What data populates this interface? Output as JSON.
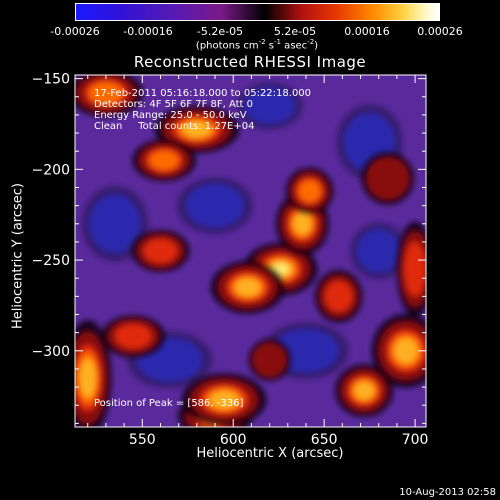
{
  "colorbar": {
    "ticks": [
      "-0.00026",
      "-0.00016",
      "-5.2e-05",
      "5.2e-05",
      "0.00016",
      "0.00026"
    ],
    "units_prefix": "(photons cm",
    "units_exp1": "-2",
    "units_mid": " s",
    "units_exp2": "-1",
    "units_suffix": " asec",
    "units_exp3": "-2",
    "units_close": ")",
    "min": -0.00026,
    "max": 0.00026
  },
  "chart_data": {
    "type": "heatmap",
    "title": "Reconstructed RHESSI Image",
    "xlabel": "Heliocentric X (arcsec)",
    "ylabel": "Heliocentric Y (arcsec)",
    "xlim": [
      513,
      706
    ],
    "ylim": [
      -342,
      -148
    ],
    "xticks": [
      550,
      600,
      650,
      700
    ],
    "yticks": [
      -150,
      -200,
      -250,
      -300
    ],
    "xtick_labels": [
      "550",
      "600",
      "650",
      "700"
    ],
    "ytick_labels": [
      "−150",
      "−200",
      "−250",
      "−300"
    ],
    "annotations": [
      "17-Feb-2011 05:16:18.000 to 05:22:18.000",
      "Detectors: 4F 5F 6F 7F 8F, Att 0",
      "Energy Range: 25.0 - 50.0 keV",
      "Clean     Total counts: 1.27E+04"
    ],
    "peak_label": "Position of Peak = [586, -336]",
    "peak_position": [
      586,
      -336
    ],
    "colormap": "blue-purple-red-orange-yellow-white",
    "bright_sources": [
      {
        "x": 590,
        "y": -336,
        "level": 1.0,
        "sx": 14,
        "sy": 9
      },
      {
        "x": 595,
        "y": -327,
        "level": 0.75,
        "sx": 16,
        "sy": 10
      },
      {
        "x": 520,
        "y": -315,
        "level": 0.7,
        "sx": 9,
        "sy": 22
      },
      {
        "x": 626,
        "y": -255,
        "level": 0.85,
        "sx": 14,
        "sy": 10
      },
      {
        "x": 608,
        "y": -265,
        "level": 0.8,
        "sx": 14,
        "sy": 10
      },
      {
        "x": 638,
        "y": -230,
        "level": 0.75,
        "sx": 10,
        "sy": 12
      },
      {
        "x": 642,
        "y": -212,
        "level": 0.65,
        "sx": 9,
        "sy": 9
      },
      {
        "x": 580,
        "y": -178,
        "level": 0.7,
        "sx": 16,
        "sy": 9
      },
      {
        "x": 562,
        "y": -195,
        "level": 0.6,
        "sx": 12,
        "sy": 8
      },
      {
        "x": 695,
        "y": -300,
        "level": 0.8,
        "sx": 13,
        "sy": 14
      },
      {
        "x": 672,
        "y": -322,
        "level": 0.7,
        "sx": 11,
        "sy": 10
      },
      {
        "x": 658,
        "y": -270,
        "level": 0.55,
        "sx": 9,
        "sy": 10
      },
      {
        "x": 700,
        "y": -255,
        "level": 0.55,
        "sx": 7,
        "sy": 18
      },
      {
        "x": 545,
        "y": -292,
        "level": 0.5,
        "sx": 12,
        "sy": 8
      },
      {
        "x": 560,
        "y": -245,
        "level": 0.5,
        "sx": 11,
        "sy": 8
      },
      {
        "x": 685,
        "y": -205,
        "level": 0.45,
        "sx": 10,
        "sy": 10
      },
      {
        "x": 530,
        "y": -158,
        "level": 0.6,
        "sx": 14,
        "sy": 9
      },
      {
        "x": 620,
        "y": -305,
        "level": 0.45,
        "sx": 8,
        "sy": 8
      }
    ],
    "dark_regions": [
      {
        "x": 535,
        "y": -230,
        "level": 0.55,
        "sx": 14,
        "sy": 16
      },
      {
        "x": 590,
        "y": -220,
        "level": 0.5,
        "sx": 16,
        "sy": 12
      },
      {
        "x": 675,
        "y": -185,
        "level": 0.55,
        "sx": 14,
        "sy": 16
      },
      {
        "x": 565,
        "y": -305,
        "level": 0.55,
        "sx": 18,
        "sy": 12
      },
      {
        "x": 640,
        "y": -300,
        "level": 0.5,
        "sx": 18,
        "sy": 12
      },
      {
        "x": 620,
        "y": -165,
        "level": 0.45,
        "sx": 14,
        "sy": 10
      },
      {
        "x": 680,
        "y": -245,
        "level": 0.45,
        "sx": 12,
        "sy": 12
      }
    ]
  },
  "footer": {
    "date": "10-Aug-2013 02:58"
  }
}
